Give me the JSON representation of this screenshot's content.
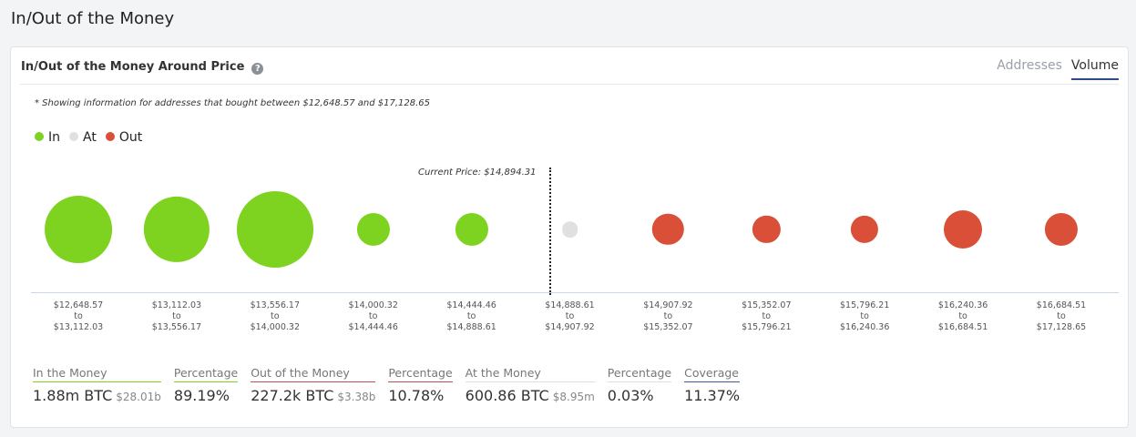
{
  "page_title": "In/Out of the Money",
  "card": {
    "title": "In/Out of the Money Around Price",
    "help_icon": "question-circle-icon",
    "tabs": [
      {
        "label": "Addresses",
        "active": false
      },
      {
        "label": "Volume",
        "active": true
      }
    ],
    "note": "* Showing information for addresses that bought between $12,648.57 and $17,128.65",
    "legend": [
      {
        "label": "In",
        "color": "#7ed321"
      },
      {
        "label": "At",
        "color": "#e0e0e0"
      },
      {
        "label": "Out",
        "color": "#d94f38"
      }
    ],
    "current_price": "Current Price: $14,894.31",
    "buckets": [
      {
        "from": "$12,648.57",
        "to_word": "to",
        "to": "$13,112.03",
        "status": "In",
        "relative_size": 0.88
      },
      {
        "from": "$13,112.03",
        "to_word": "to",
        "to": "$13,556.17",
        "status": "In",
        "relative_size": 0.86
      },
      {
        "from": "$13,556.17",
        "to_word": "to",
        "to": "$14,000.32",
        "status": "In",
        "relative_size": 1.0
      },
      {
        "from": "$14,000.32",
        "to_word": "to",
        "to": "$14,444.46",
        "status": "In",
        "relative_size": 0.43
      },
      {
        "from": "$14,444.46",
        "to_word": "to",
        "to": "$14,888.61",
        "status": "In",
        "relative_size": 0.43
      },
      {
        "from": "$14,888.61",
        "to_word": "to",
        "to": "$14,907.92",
        "status": "At",
        "relative_size": 0.21
      },
      {
        "from": "$14,907.92",
        "to_word": "to",
        "to": "$15,352.07",
        "status": "Out",
        "relative_size": 0.41
      },
      {
        "from": "$15,352.07",
        "to_word": "to",
        "to": "$15,796.21",
        "status": "Out",
        "relative_size": 0.36
      },
      {
        "from": "$15,796.21",
        "to_word": "to",
        "to": "$16,240.36",
        "status": "Out",
        "relative_size": 0.36
      },
      {
        "from": "$16,240.36",
        "to_word": "to",
        "to": "$16,684.51",
        "status": "Out",
        "relative_size": 0.5
      },
      {
        "from": "$16,684.51",
        "to_word": "to",
        "to": "$17,128.65",
        "status": "Out",
        "relative_size": 0.43
      }
    ],
    "stats": [
      {
        "label": "In the Money",
        "value": "1.88m BTC",
        "sub": "$28.01b",
        "color": "#7ed321"
      },
      {
        "label": "Percentage",
        "value": "89.19%",
        "sub": "",
        "color": "#7ed321"
      },
      {
        "label": "Out of the Money",
        "value": "227.2k BTC",
        "sub": "$3.38b",
        "color": "#c0504d"
      },
      {
        "label": "Percentage",
        "value": "10.78%",
        "sub": "",
        "color": "#c0504d"
      },
      {
        "label": "At the Money",
        "value": "600.86 BTC",
        "sub": "$8.95m",
        "color": "#dddddd"
      },
      {
        "label": "Percentage",
        "value": "0.03%",
        "sub": "",
        "color": "#dddddd"
      },
      {
        "label": "Coverage",
        "value": "11.37%",
        "sub": "",
        "color": "#3b5b9a"
      }
    ]
  }
}
